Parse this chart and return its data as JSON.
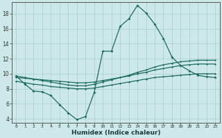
{
  "title": "",
  "xlabel": "Humidex (Indice chaleur)",
  "ylabel": "",
  "bg_color": "#cce8e8",
  "line_color": "#1a6b5a",
  "grid_color": "#afd0d0",
  "x_ticks": [
    0,
    1,
    2,
    3,
    4,
    5,
    6,
    7,
    8,
    9,
    10,
    11,
    12,
    13,
    14,
    15,
    16,
    17,
    18,
    19,
    20,
    21,
    22,
    23
  ],
  "y_ticks": [
    4,
    6,
    8,
    10,
    12,
    14,
    16,
    18
  ],
  "xlim": [
    -0.5,
    23.5
  ],
  "ylim": [
    3.5,
    19.5
  ],
  "series1_y": [
    9.7,
    8.6,
    7.7,
    7.6,
    7.1,
    5.9,
    4.8,
    3.9,
    4.3,
    7.5,
    13.0,
    13.0,
    16.3,
    17.3,
    19.1,
    18.1,
    16.6,
    14.7,
    12.2,
    11.1,
    10.4,
    9.8,
    9.6,
    9.5
  ],
  "series2_y": [
    9.0,
    8.8,
    8.6,
    8.5,
    8.3,
    8.2,
    8.1,
    8.0,
    8.0,
    8.1,
    8.3,
    8.5,
    8.7,
    8.9,
    9.1,
    9.3,
    9.5,
    9.6,
    9.7,
    9.8,
    9.9,
    10.0,
    10.0,
    10.0
  ],
  "series3_y": [
    9.5,
    9.4,
    9.3,
    9.2,
    9.1,
    9.0,
    8.9,
    8.8,
    8.8,
    8.9,
    9.1,
    9.3,
    9.5,
    9.7,
    10.0,
    10.2,
    10.5,
    10.7,
    10.9,
    11.1,
    11.2,
    11.3,
    11.3,
    11.3
  ],
  "series4_y": [
    9.7,
    9.5,
    9.3,
    9.1,
    8.9,
    8.7,
    8.5,
    8.4,
    8.4,
    8.6,
    8.9,
    9.2,
    9.5,
    9.8,
    10.2,
    10.5,
    10.9,
    11.2,
    11.4,
    11.6,
    11.7,
    11.8,
    11.8,
    11.8
  ]
}
